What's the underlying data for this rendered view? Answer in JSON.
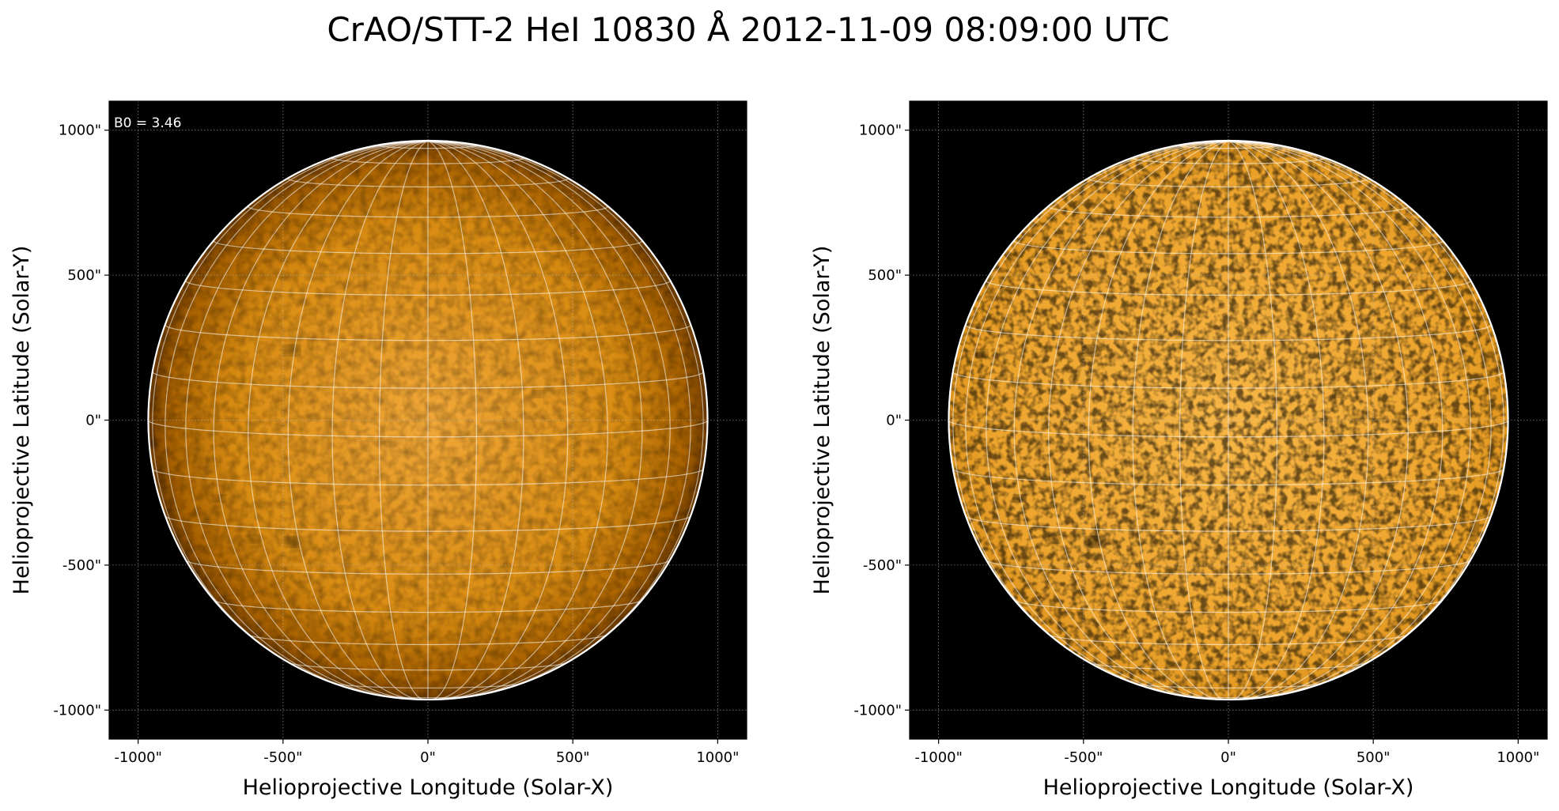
{
  "title": "CrAO/STT-2 HeI 10830 Å 2012-11-09 08:09:00 UTC",
  "chart_data": [
    {
      "type": "solar-image",
      "annotation": "B0 = 3.46",
      "xlabel": "Helioprojective Longitude (Solar-X)",
      "ylabel": "Helioprojective Latitude (Solar-Y)",
      "xlim": [
        -1100,
        1100
      ],
      "ylim": [
        -1100,
        1100
      ],
      "xticks": [
        {
          "value": -1000,
          "label": "-1000\""
        },
        {
          "value": -500,
          "label": "-500\""
        },
        {
          "value": 0,
          "label": "0\""
        },
        {
          "value": 500,
          "label": "500\""
        },
        {
          "value": 1000,
          "label": "1000\""
        }
      ],
      "yticks": [
        {
          "value": -1000,
          "label": "-1000\""
        },
        {
          "value": -500,
          "label": "-500\""
        },
        {
          "value": 0,
          "label": "0\""
        },
        {
          "value": 500,
          "label": "500\""
        },
        {
          "value": 1000,
          "label": "1000\""
        }
      ],
      "disk_radius": 965,
      "grid": true
    },
    {
      "type": "solar-image",
      "xlabel": "Helioprojective Longitude (Solar-X)",
      "ylabel": "Helioprojective Latitude (Solar-Y)",
      "xlim": [
        -1100,
        1100
      ],
      "ylim": [
        -1100,
        1100
      ],
      "xticks": [
        {
          "value": -1000,
          "label": "-1000\""
        },
        {
          "value": -500,
          "label": "-500\""
        },
        {
          "value": 0,
          "label": "0\""
        },
        {
          "value": 500,
          "label": "500\""
        },
        {
          "value": 1000,
          "label": "1000\""
        }
      ],
      "yticks": [
        {
          "value": -1000,
          "label": "-1000\""
        },
        {
          "value": -500,
          "label": "-500\""
        },
        {
          "value": 0,
          "label": "0\""
        },
        {
          "value": 500,
          "label": "500\""
        },
        {
          "value": 1000,
          "label": "1000\""
        }
      ],
      "disk_radius": 965,
      "grid": true
    }
  ]
}
